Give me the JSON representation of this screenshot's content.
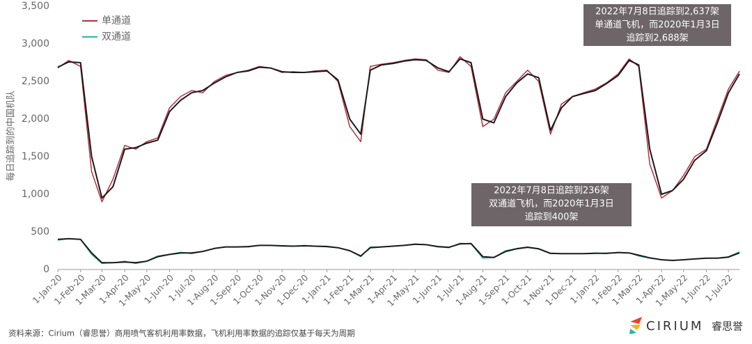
{
  "chart_data": {
    "type": "line",
    "y_label": "每日追踪到的中国机队",
    "x": [
      "2020-01-01",
      "2020-01-16",
      "2020-02-01",
      "2020-02-16",
      "2020-03-01",
      "2020-03-16",
      "2020-04-01",
      "2020-04-16",
      "2020-05-01",
      "2020-05-16",
      "2020-06-01",
      "2020-06-16",
      "2020-07-01",
      "2020-07-16",
      "2020-08-01",
      "2020-08-16",
      "2020-09-01",
      "2020-09-16",
      "2020-10-01",
      "2020-10-16",
      "2020-11-01",
      "2020-11-16",
      "2020-12-01",
      "2020-12-16",
      "2021-01-01",
      "2021-01-16",
      "2021-02-01",
      "2021-02-16",
      "2021-03-01",
      "2021-03-16",
      "2021-04-01",
      "2021-04-16",
      "2021-05-01",
      "2021-05-16",
      "2021-06-01",
      "2021-06-16",
      "2021-07-01",
      "2021-07-16",
      "2021-08-01",
      "2021-08-16",
      "2021-09-01",
      "2021-09-16",
      "2021-10-01",
      "2021-10-16",
      "2021-11-01",
      "2021-11-16",
      "2021-12-01",
      "2021-12-16",
      "2022-01-01",
      "2022-01-16",
      "2022-02-01",
      "2022-02-16",
      "2022-03-01",
      "2022-03-16",
      "2022-04-01",
      "2022-04-16",
      "2022-05-01",
      "2022-05-16",
      "2022-06-01",
      "2022-06-16",
      "2022-07-01",
      "2022-07-16"
    ],
    "series": [
      {
        "name": "单通道",
        "color": "#b0313f",
        "values": [
          2680,
          2780,
          2700,
          1300,
          900,
          1200,
          1650,
          1600,
          1700,
          1750,
          2150,
          2300,
          2380,
          2350,
          2500,
          2580,
          2620,
          2650,
          2700,
          2680,
          2620,
          2630,
          2620,
          2640,
          2650,
          2500,
          1900,
          1700,
          2700,
          2730,
          2750,
          2780,
          2800,
          2790,
          2650,
          2620,
          2830,
          2700,
          1900,
          2000,
          2350,
          2500,
          2650,
          2500,
          1800,
          2200,
          2300,
          2350,
          2400,
          2480,
          2600,
          2800,
          2700,
          1400,
          950,
          1050,
          1250,
          1500,
          1600,
          2000,
          2400,
          2637
        ]
      },
      {
        "name": "双通道",
        "color": "#2bb5a0",
        "values": [
          390,
          410,
          400,
          200,
          80,
          90,
          110,
          80,
          110,
          180,
          200,
          230,
          210,
          240,
          280,
          300,
          300,
          300,
          320,
          320,
          310,
          310,
          320,
          310,
          310,
          290,
          250,
          170,
          300,
          300,
          310,
          320,
          340,
          330,
          300,
          290,
          350,
          340,
          150,
          160,
          250,
          280,
          300,
          270,
          210,
          210,
          210,
          210,
          220,
          210,
          230,
          220,
          180,
          150,
          130,
          120,
          130,
          140,
          150,
          150,
          170,
          236
        ]
      },
      {
        "color": "#1a1a1a",
        "values": [
          2690,
          2760,
          2750,
          1500,
          950,
          1100,
          1600,
          1620,
          1680,
          1720,
          2100,
          2250,
          2350,
          2380,
          2480,
          2560,
          2620,
          2640,
          2690,
          2680,
          2630,
          2620,
          2620,
          2630,
          2640,
          2520,
          2000,
          1800,
          2650,
          2720,
          2740,
          2770,
          2790,
          2780,
          2680,
          2630,
          2800,
          2750,
          2000,
          1950,
          2300,
          2480,
          2600,
          2550,
          1850,
          2150,
          2300,
          2340,
          2380,
          2470,
          2580,
          2780,
          2720,
          1600,
          1000,
          1050,
          1200,
          1450,
          1580,
          1950,
          2350,
          2600
        ]
      },
      {
        "color": "#1a1a1a",
        "values": [
          400,
          410,
          400,
          220,
          90,
          90,
          100,
          90,
          110,
          170,
          200,
          220,
          220,
          240,
          280,
          300,
          300,
          305,
          320,
          320,
          315,
          310,
          315,
          310,
          305,
          290,
          250,
          180,
          290,
          300,
          310,
          320,
          335,
          330,
          305,
          295,
          340,
          345,
          170,
          160,
          240,
          275,
          295,
          275,
          215,
          210,
          210,
          210,
          215,
          215,
          225,
          220,
          190,
          155,
          130,
          120,
          130,
          140,
          150,
          150,
          165,
          220
        ]
      }
    ],
    "ylim": [
      0,
      3500
    ],
    "yticks": [
      0,
      500,
      {
        "value": 1000,
        "label": "1,000"
      },
      {
        "value": 1500,
        "label": "1,500"
      },
      {
        "value": 2000,
        "label": "2,000"
      },
      {
        "value": 2500,
        "label": "2,500"
      },
      {
        "value": 3000,
        "label": "3,000"
      },
      {
        "value": 3500,
        "label": "3,500"
      }
    ],
    "xlim": [
      "2020-01-01",
      "2022-07-16"
    ],
    "xticks": [
      {
        "value": "2020-01-01",
        "label": "1-Jan-20"
      },
      {
        "value": "2020-02-01",
        "label": "1-Feb-20"
      },
      {
        "value": "2020-03-01",
        "label": "1-Mar-20"
      },
      {
        "value": "2020-04-01",
        "label": "1-Apr-20"
      },
      {
        "value": "2020-05-01",
        "label": "1-May-20"
      },
      {
        "value": "2020-06-01",
        "label": "1-Jun-20"
      },
      {
        "value": "2020-07-01",
        "label": "1-Jul-20"
      },
      {
        "value": "2020-08-01",
        "label": "1-Aug-20"
      },
      {
        "value": "2020-09-01",
        "label": "1-Sep-20"
      },
      {
        "value": "2020-10-01",
        "label": "1-Oct-20"
      },
      {
        "value": "2020-11-01",
        "label": "1-Nov-20"
      },
      {
        "value": "2020-12-01",
        "label": "1-Dec-20"
      },
      {
        "value": "2021-01-01",
        "label": "1-Jan-21"
      },
      {
        "value": "2021-02-01",
        "label": "1-Feb-21"
      },
      {
        "value": "2021-03-01",
        "label": "1-Mar-21"
      },
      {
        "value": "2021-04-01",
        "label": "1-Apr-21"
      },
      {
        "value": "2021-05-01",
        "label": "1-May-21"
      },
      {
        "value": "2021-06-01",
        "label": "1-Jun-21"
      },
      {
        "value": "2021-07-01",
        "label": "1-Jul-21"
      },
      {
        "value": "2021-08-01",
        "label": "1-Aug-21"
      },
      {
        "value": "2021-09-01",
        "label": "1-Sep-21"
      },
      {
        "value": "2021-10-01",
        "label": "1-Oct-21"
      },
      {
        "value": "2021-11-01",
        "label": "1-Nov-21"
      },
      {
        "value": "2021-12-01",
        "label": "1-Dec-21"
      },
      {
        "value": "2022-01-01",
        "label": "1-Jan-22"
      },
      {
        "value": "2022-02-01",
        "label": "1-Feb-22"
      },
      {
        "value": "2022-03-01",
        "label": "1-Mar-22"
      },
      {
        "value": "2022-04-01",
        "label": "1-Apr-22"
      },
      {
        "value": "2022-05-01",
        "label": "1-May-22"
      },
      {
        "value": "2022-06-01",
        "label": "1-Jun-22"
      },
      {
        "value": "2022-07-01",
        "label": "1-Jul-22"
      }
    ],
    "grid": false,
    "legend": "upper-left",
    "annotations": [
      {
        "lines": [
          "2022年7月8日追踪到2,637架",
          "单通道飞机，而2020年1月3日",
          "追踪到2,688架"
        ]
      },
      {
        "lines": [
          "2022年7月8日追踪到236架",
          "双通道飞机，而2020年1月3日",
          "追踪到400架"
        ]
      }
    ],
    "source": "资料来源：Cirium（睿思誉）商用喷气客机利用率数据，飞机利用率数据的追踪仅基于每天为周期",
    "brand": "CIRIUM",
    "brand_cn": "睿思誉"
  }
}
